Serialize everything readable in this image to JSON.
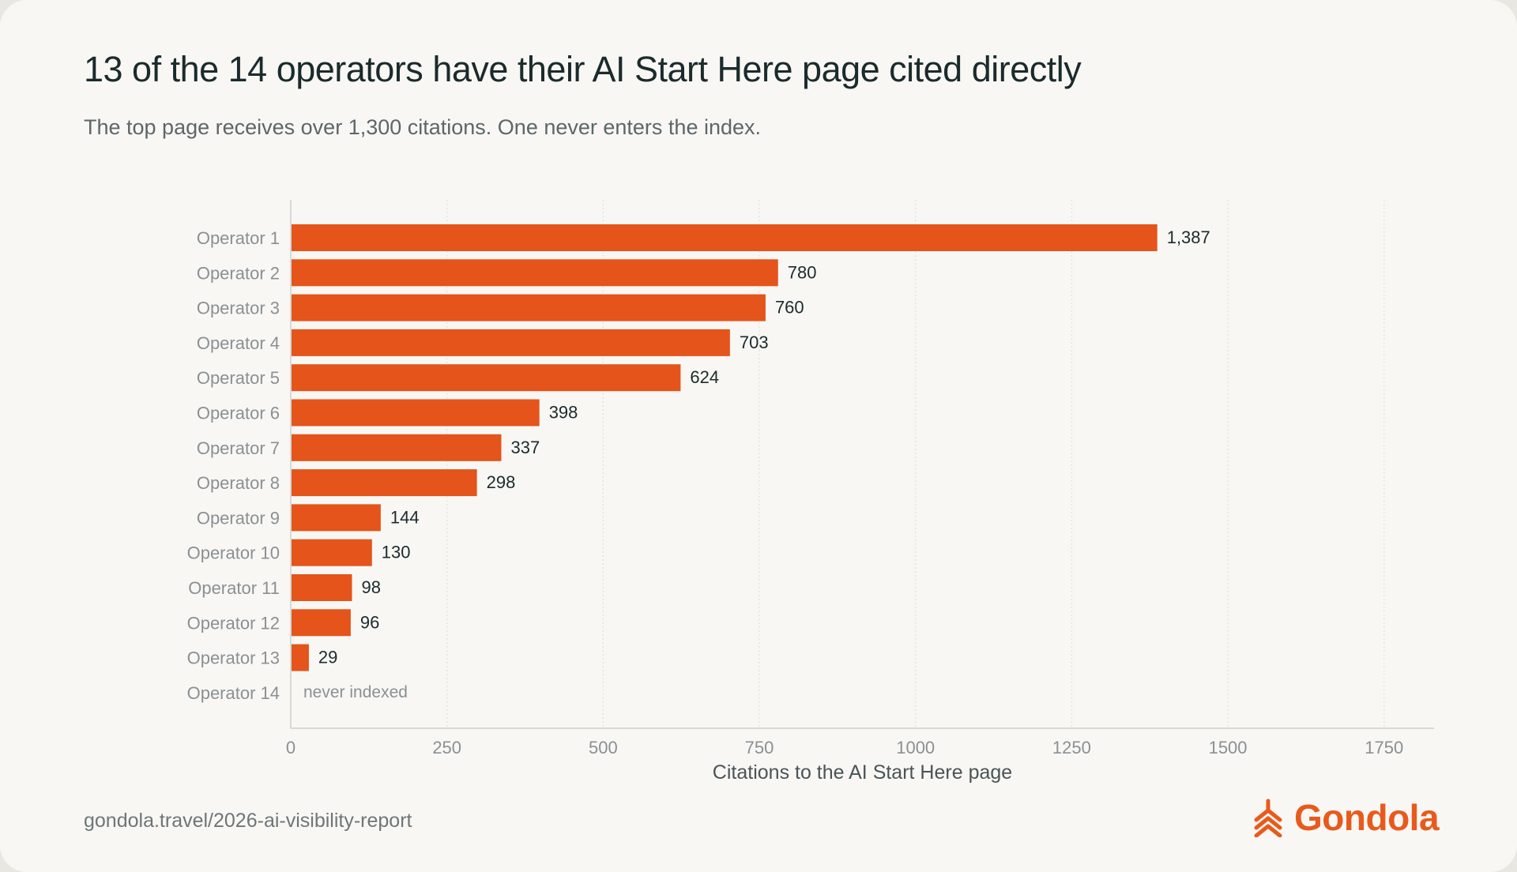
{
  "title": "13 of the 14 operators have their AI Start Here page cited directly",
  "subtitle": "The top page receives over 1,300 citations. One never enters the index.",
  "source": "gondola.travel/2026-ai-visibility-report",
  "brand": {
    "name": "Gondola",
    "logo_icon": "gondola-chevron-icon",
    "color": "#e85a1c"
  },
  "colors": {
    "bar": "#e4541b",
    "axis_text": "#8a9092",
    "value_text": "#1b2b2c",
    "grid": "#e3e1dc"
  },
  "chart_data": {
    "type": "bar",
    "orientation": "horizontal",
    "categories": [
      "Operator 1",
      "Operator 2",
      "Operator 3",
      "Operator 4",
      "Operator 5",
      "Operator 6",
      "Operator 7",
      "Operator 8",
      "Operator 9",
      "Operator 10",
      "Operator 11",
      "Operator 12",
      "Operator 13",
      "Operator 14"
    ],
    "values": [
      1387,
      780,
      760,
      703,
      624,
      398,
      337,
      298,
      144,
      130,
      98,
      96,
      29,
      null
    ],
    "value_labels": [
      "1,387",
      "780",
      "760",
      "703",
      "624",
      "398",
      "337",
      "298",
      "144",
      "130",
      "98",
      "96",
      "29",
      "never indexed"
    ],
    "xlabel": "Citations to the AI Start Here page",
    "xlim": [
      0,
      1830
    ],
    "xticks": [
      0,
      250,
      500,
      750,
      1000,
      1250,
      1500,
      1750
    ],
    "grid": "vertical dotted"
  }
}
